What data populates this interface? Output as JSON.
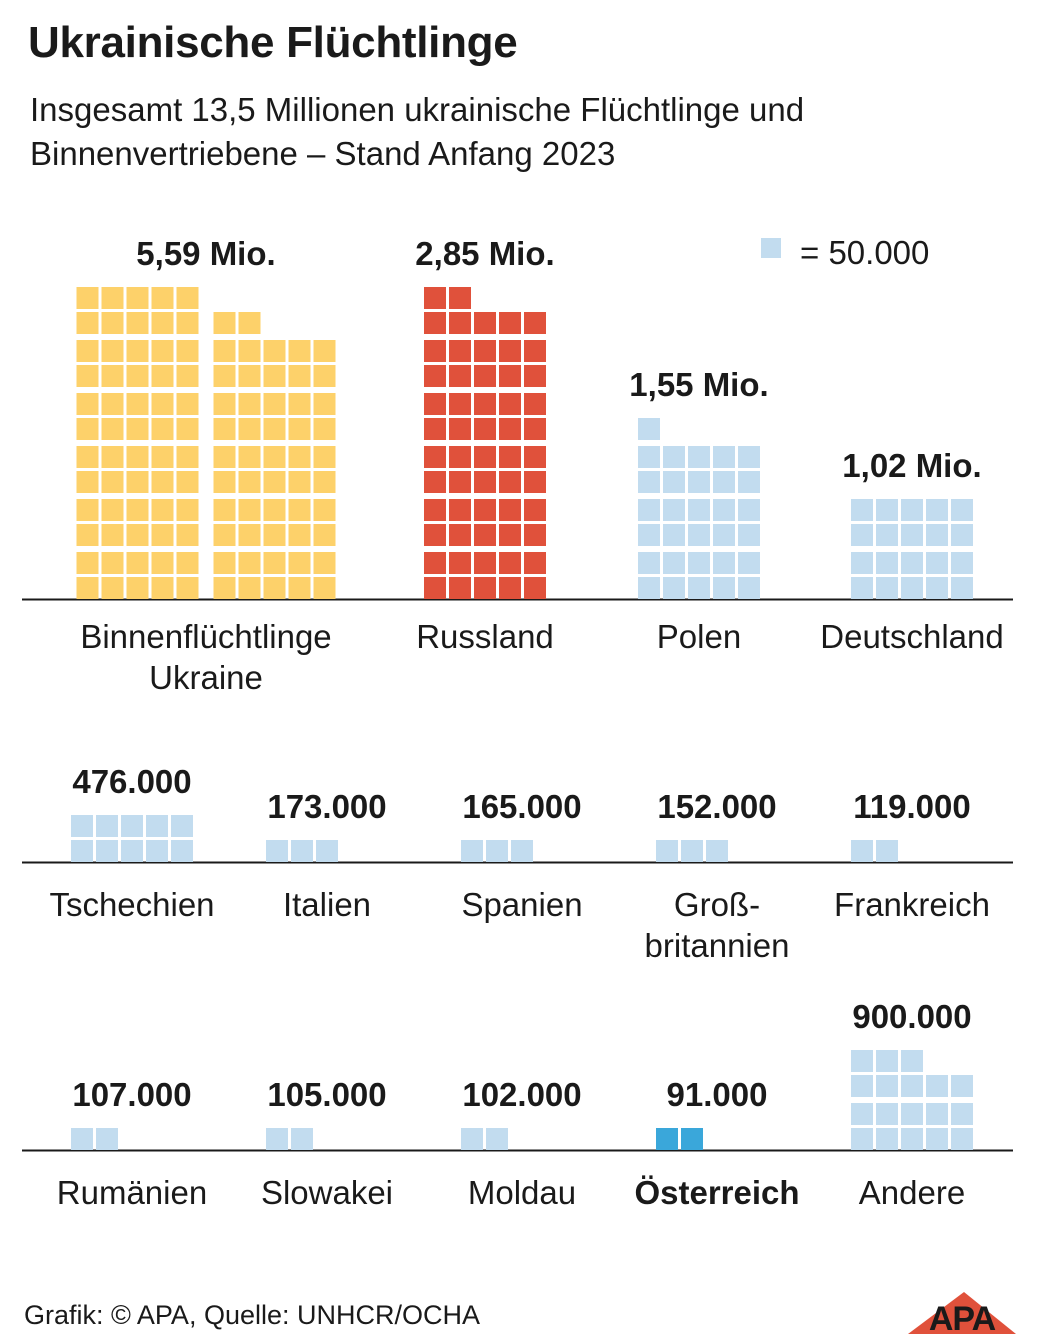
{
  "header": {
    "title": "Ukrainische Flüchtlinge",
    "subtitle": "Insgesamt 13,5 Millionen ukrainische Flüchtlinge und Binnenvertriebene – Stand Anfang 2023"
  },
  "legend": {
    "label": "= 50.000",
    "square_color": "#c2dcef"
  },
  "colors": {
    "ukraine": "#fdd16a",
    "russia": "#e0513b",
    "default": "#c2dcef",
    "austria": "#3aa7da"
  },
  "chart_data": {
    "type": "waffle",
    "unit_value": 50000,
    "series": [
      {
        "category": "Binnenflüchtlinge Ukraine",
        "label_lines": [
          "Binnenflüchtlinge",
          "Ukraine"
        ],
        "value": 5590000,
        "value_label": "5,59 Mio.",
        "color": "#fdd16a"
      },
      {
        "category": "Russland",
        "label_lines": [
          "Russland"
        ],
        "value": 2850000,
        "value_label": "2,85 Mio.",
        "color": "#e0513b"
      },
      {
        "category": "Polen",
        "label_lines": [
          "Polen"
        ],
        "value": 1550000,
        "value_label": "1,55 Mio.",
        "color": "#c2dcef"
      },
      {
        "category": "Deutschland",
        "label_lines": [
          "Deutschland"
        ],
        "value": 1020000,
        "value_label": "1,02 Mio.",
        "color": "#c2dcef"
      },
      {
        "category": "Tschechien",
        "label_lines": [
          "Tschechien"
        ],
        "value": 476000,
        "value_label": "476.000",
        "color": "#c2dcef"
      },
      {
        "category": "Italien",
        "label_lines": [
          "Italien"
        ],
        "value": 173000,
        "value_label": "173.000",
        "color": "#c2dcef"
      },
      {
        "category": "Spanien",
        "label_lines": [
          "Spanien"
        ],
        "value": 165000,
        "value_label": "165.000",
        "color": "#c2dcef"
      },
      {
        "category": "Großbritannien",
        "label_lines": [
          "Groß-",
          "britannien"
        ],
        "value": 152000,
        "value_label": "152.000",
        "color": "#c2dcef"
      },
      {
        "category": "Frankreich",
        "label_lines": [
          "Frankreich"
        ],
        "value": 119000,
        "value_label": "119.000",
        "color": "#c2dcef"
      },
      {
        "category": "Rumänien",
        "label_lines": [
          "Rumänien"
        ],
        "value": 107000,
        "value_label": "107.000",
        "color": "#c2dcef"
      },
      {
        "category": "Slowakei",
        "label_lines": [
          "Slowakei"
        ],
        "value": 105000,
        "value_label": "105.000",
        "color": "#c2dcef"
      },
      {
        "category": "Moldau",
        "label_lines": [
          "Moldau"
        ],
        "value": 102000,
        "value_label": "102.000",
        "color": "#c2dcef"
      },
      {
        "category": "Österreich",
        "label_lines": [
          "Österreich"
        ],
        "value": 91000,
        "value_label": "91.000",
        "color": "#3aa7da",
        "highlight": true
      },
      {
        "category": "Andere",
        "label_lines": [
          "Andere"
        ],
        "value": 900000,
        "value_label": "900.000",
        "color": "#c2dcef"
      }
    ]
  },
  "footer": {
    "source": "Grafik: © APA, Quelle: UNHCR/OCHA",
    "logo_text": "APA"
  }
}
